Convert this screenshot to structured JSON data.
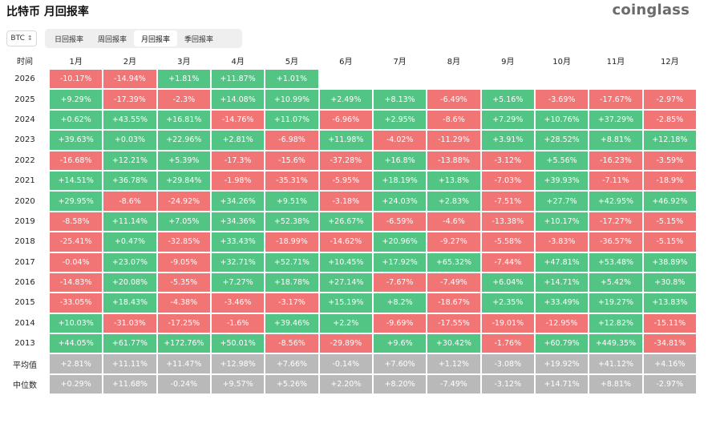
{
  "header": {
    "title": "比特币 月回报率",
    "logo": "coinglass"
  },
  "coin_select": {
    "value": "BTC",
    "icon": "chevron-updown-icon"
  },
  "tabs": [
    {
      "label": "日回报率",
      "active": false
    },
    {
      "label": "周回报率",
      "active": false
    },
    {
      "label": "月回报率",
      "active": true
    },
    {
      "label": "季回报率",
      "active": false
    }
  ],
  "colors": {
    "positive": "#52c483",
    "negative": "#f27576",
    "summary": "#b9b9b9"
  },
  "table": {
    "corner_label": "时间",
    "months": [
      "1月",
      "2月",
      "3月",
      "4月",
      "5月",
      "6月",
      "7月",
      "8月",
      "9月",
      "10月",
      "11月",
      "12月"
    ],
    "rows": [
      {
        "year": "2026",
        "values": [
          "-10.17%",
          "-14.94%",
          "+1.81%",
          "+11.87%",
          "+1.01%",
          "",
          "",
          "",
          "",
          "",
          "",
          ""
        ]
      },
      {
        "year": "2025",
        "values": [
          "+9.29%",
          "-17.39%",
          "-2.3%",
          "+14.08%",
          "+10.99%",
          "+2.49%",
          "+8.13%",
          "-6.49%",
          "+5.16%",
          "-3.69%",
          "-17.67%",
          "-2.97%"
        ]
      },
      {
        "year": "2024",
        "values": [
          "+0.62%",
          "+43.55%",
          "+16.81%",
          "-14.76%",
          "+11.07%",
          "-6.96%",
          "+2.95%",
          "-8.6%",
          "+7.29%",
          "+10.76%",
          "+37.29%",
          "-2.85%"
        ]
      },
      {
        "year": "2023",
        "values": [
          "+39.63%",
          "+0.03%",
          "+22.96%",
          "+2.81%",
          "-6.98%",
          "+11.98%",
          "-4.02%",
          "-11.29%",
          "+3.91%",
          "+28.52%",
          "+8.81%",
          "+12.18%"
        ]
      },
      {
        "year": "2022",
        "values": [
          "-16.68%",
          "+12.21%",
          "+5.39%",
          "-17.3%",
          "-15.6%",
          "-37.28%",
          "+16.8%",
          "-13.88%",
          "-3.12%",
          "+5.56%",
          "-16.23%",
          "-3.59%"
        ]
      },
      {
        "year": "2021",
        "values": [
          "+14.51%",
          "+36.78%",
          "+29.84%",
          "-1.98%",
          "-35.31%",
          "-5.95%",
          "+18.19%",
          "+13.8%",
          "-7.03%",
          "+39.93%",
          "-7.11%",
          "-18.9%"
        ]
      },
      {
        "year": "2020",
        "values": [
          "+29.95%",
          "-8.6%",
          "-24.92%",
          "+34.26%",
          "+9.51%",
          "-3.18%",
          "+24.03%",
          "+2.83%",
          "-7.51%",
          "+27.7%",
          "+42.95%",
          "+46.92%"
        ]
      },
      {
        "year": "2019",
        "values": [
          "-8.58%",
          "+11.14%",
          "+7.05%",
          "+34.36%",
          "+52.38%",
          "+26.67%",
          "-6.59%",
          "-4.6%",
          "-13.38%",
          "+10.17%",
          "-17.27%",
          "-5.15%"
        ]
      },
      {
        "year": "2018",
        "values": [
          "-25.41%",
          "+0.47%",
          "-32.85%",
          "+33.43%",
          "-18.99%",
          "-14.62%",
          "+20.96%",
          "-9.27%",
          "-5.58%",
          "-3.83%",
          "-36.57%",
          "-5.15%"
        ]
      },
      {
        "year": "2017",
        "values": [
          "-0.04%",
          "+23.07%",
          "-9.05%",
          "+32.71%",
          "+52.71%",
          "+10.45%",
          "+17.92%",
          "+65.32%",
          "-7.44%",
          "+47.81%",
          "+53.48%",
          "+38.89%"
        ]
      },
      {
        "year": "2016",
        "values": [
          "-14.83%",
          "+20.08%",
          "-5.35%",
          "+7.27%",
          "+18.78%",
          "+27.14%",
          "-7.67%",
          "-7.49%",
          "+6.04%",
          "+14.71%",
          "+5.42%",
          "+30.8%"
        ]
      },
      {
        "year": "2015",
        "values": [
          "-33.05%",
          "+18.43%",
          "-4.38%",
          "-3.46%",
          "-3.17%",
          "+15.19%",
          "+8.2%",
          "-18.67%",
          "+2.35%",
          "+33.49%",
          "+19.27%",
          "+13.83%"
        ]
      },
      {
        "year": "2014",
        "values": [
          "+10.03%",
          "-31.03%",
          "-17.25%",
          "-1.6%",
          "+39.46%",
          "+2.2%",
          "-9.69%",
          "-17.55%",
          "-19.01%",
          "-12.95%",
          "+12.82%",
          "-15.11%"
        ]
      },
      {
        "year": "2013",
        "values": [
          "+44.05%",
          "+61.77%",
          "+172.76%",
          "+50.01%",
          "-8.56%",
          "-29.89%",
          "+9.6%",
          "+30.42%",
          "-1.76%",
          "+60.79%",
          "+449.35%",
          "-34.81%"
        ]
      }
    ],
    "summary_rows": [
      {
        "label": "平均值",
        "values": [
          "+2.81%",
          "+11.11%",
          "+11.47%",
          "+12.98%",
          "+7.66%",
          "-0.14%",
          "+7.60%",
          "+1.12%",
          "-3.08%",
          "+19.92%",
          "+41.12%",
          "+4.16%"
        ]
      },
      {
        "label": "中位数",
        "values": [
          "+0.29%",
          "+11.68%",
          "-0.24%",
          "+9.57%",
          "+5.26%",
          "+2.20%",
          "+8.20%",
          "-7.49%",
          "-3.12%",
          "+14.71%",
          "+8.81%",
          "-2.97%"
        ]
      }
    ]
  }
}
